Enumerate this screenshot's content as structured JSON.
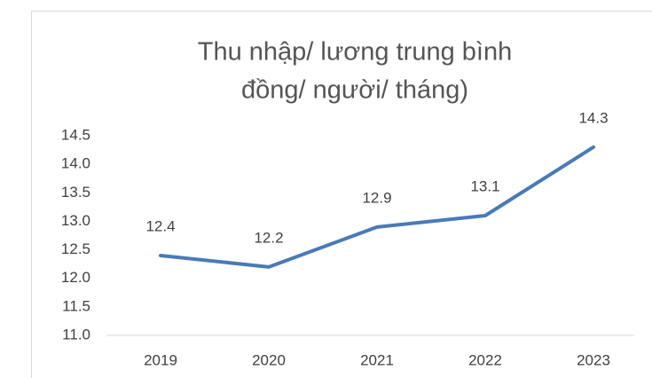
{
  "chart_data": {
    "type": "line",
    "title": [
      "Thu nhập/ lương trung bình",
      "đồng/ người/ tháng)"
    ],
    "categories": [
      "2019",
      "2020",
      "2021",
      "2022",
      "2023"
    ],
    "series": [
      {
        "name": "Thu nhập",
        "color": "#4a7ab8",
        "values": [
          12.4,
          12.2,
          12.9,
          13.1,
          14.3
        ]
      }
    ],
    "ylim": [
      11,
      14.5
    ],
    "yticks": [
      {
        "value": 11,
        "label": "11.0"
      },
      11.5,
      {
        "value": 12,
        "label": "12.0"
      },
      12.5,
      {
        "value": 13,
        "label": "13.0"
      },
      13.5,
      {
        "value": 14,
        "label": "14.0"
      },
      14.5
    ],
    "grid": false
  }
}
